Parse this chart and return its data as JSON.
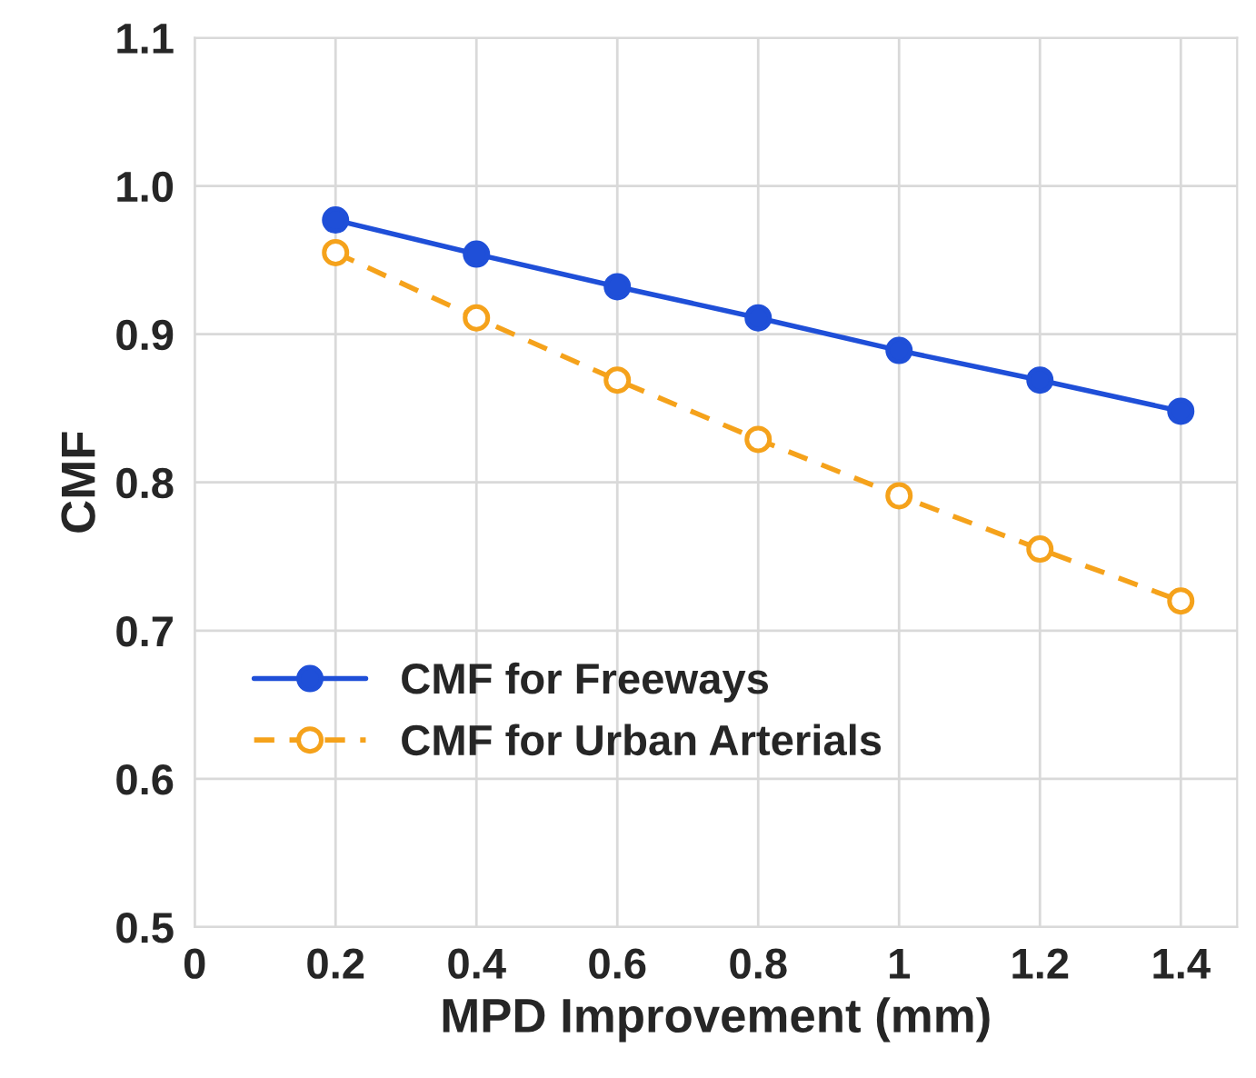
{
  "chart_data": {
    "type": "line",
    "xlabel": "MPD Improvement (mm)",
    "ylabel": "CMF",
    "x": [
      0.2,
      0.4,
      0.6,
      0.8,
      1,
      1.2,
      1.4
    ],
    "series": [
      {
        "name": "CMF for Freeways",
        "color": "#1f4fd8",
        "marker": "circle",
        "line_style": "solid",
        "values": [
          0.977,
          0.954,
          0.932,
          0.911,
          0.889,
          0.869,
          0.848
        ]
      },
      {
        "name": "CMF for Urban Arterials",
        "color": "#f5a21b",
        "marker": "circle",
        "line_style": "dashed",
        "values": [
          0.955,
          0.911,
          0.869,
          0.829,
          0.791,
          0.755,
          0.72
        ]
      }
    ],
    "xlim": [
      0,
      1.48
    ],
    "ylim": [
      0.5,
      1.1
    ],
    "xticks": [
      0,
      0.2,
      0.4,
      0.6,
      0.8,
      1,
      1.2,
      1.4
    ],
    "yticks": [
      0.5,
      0.6,
      0.7,
      0.8,
      0.9,
      {
        "value": 1,
        "label": "1.0"
      },
      1.1
    ],
    "grid": true,
    "legend": "bottom left"
  }
}
